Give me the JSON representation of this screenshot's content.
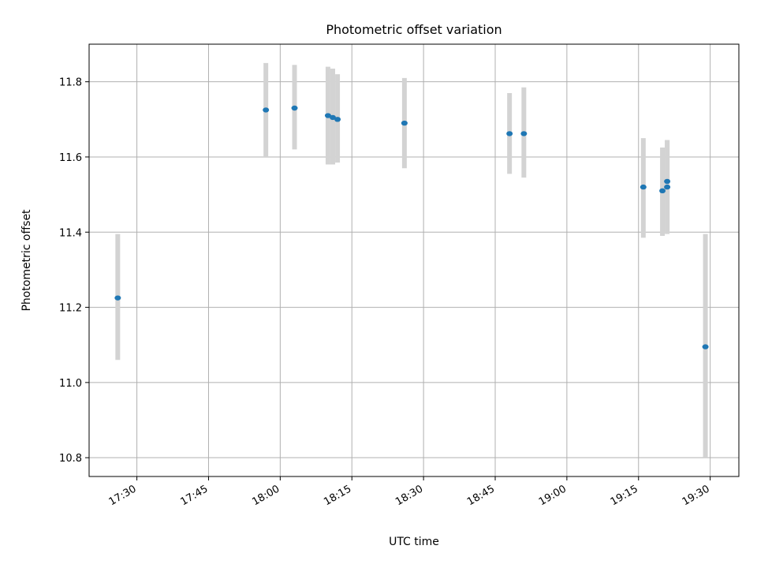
{
  "chart_data": {
    "type": "scatter",
    "title": "Photometric offset variation",
    "xlabel": "UTC time",
    "ylabel": "Photometric offset",
    "xlim": [
      "17:20",
      "19:36"
    ],
    "ylim": [
      10.75,
      11.9
    ],
    "grid": true,
    "x_ticks": [
      "17:30",
      "17:45",
      "18:00",
      "18:15",
      "18:30",
      "18:45",
      "19:00",
      "19:15",
      "19:30"
    ],
    "y_ticks": [
      "10.8",
      "11.0",
      "11.2",
      "11.4",
      "11.6",
      "11.8"
    ],
    "colors": {
      "point": "#1f77b4",
      "errorbar": "#d3d3d3",
      "grid": "#b0b0b0"
    },
    "points": [
      {
        "time": "17:26",
        "y": 11.225,
        "err_low": 11.06,
        "err_high": 11.395
      },
      {
        "time": "17:57",
        "y": 11.725,
        "err_low": 11.6,
        "err_high": 11.85
      },
      {
        "time": "18:03",
        "y": 11.73,
        "err_low": 11.62,
        "err_high": 11.845
      },
      {
        "time": "18:10",
        "y": 11.71,
        "err_low": 11.58,
        "err_high": 11.84
      },
      {
        "time": "18:11",
        "y": 11.705,
        "err_low": 11.58,
        "err_high": 11.835
      },
      {
        "time": "18:12",
        "y": 11.7,
        "err_low": 11.585,
        "err_high": 11.82
      },
      {
        "time": "18:26",
        "y": 11.69,
        "err_low": 11.57,
        "err_high": 11.81
      },
      {
        "time": "18:48",
        "y": 11.662,
        "err_low": 11.555,
        "err_high": 11.77
      },
      {
        "time": "18:51",
        "y": 11.662,
        "err_low": 11.545,
        "err_high": 11.785
      },
      {
        "time": "19:16",
        "y": 11.52,
        "err_low": 11.385,
        "err_high": 11.65
      },
      {
        "time": "19:20",
        "y": 11.51,
        "err_low": 11.39,
        "err_high": 11.625
      },
      {
        "time": "19:21",
        "y": 11.535,
        "err_low": 11.4,
        "err_high": 11.645
      },
      {
        "time": "19:21",
        "y": 11.52,
        "err_low": 11.395,
        "err_high": 11.645
      },
      {
        "time": "19:29",
        "y": 11.095,
        "err_low": 10.8,
        "err_high": 11.395
      }
    ]
  }
}
